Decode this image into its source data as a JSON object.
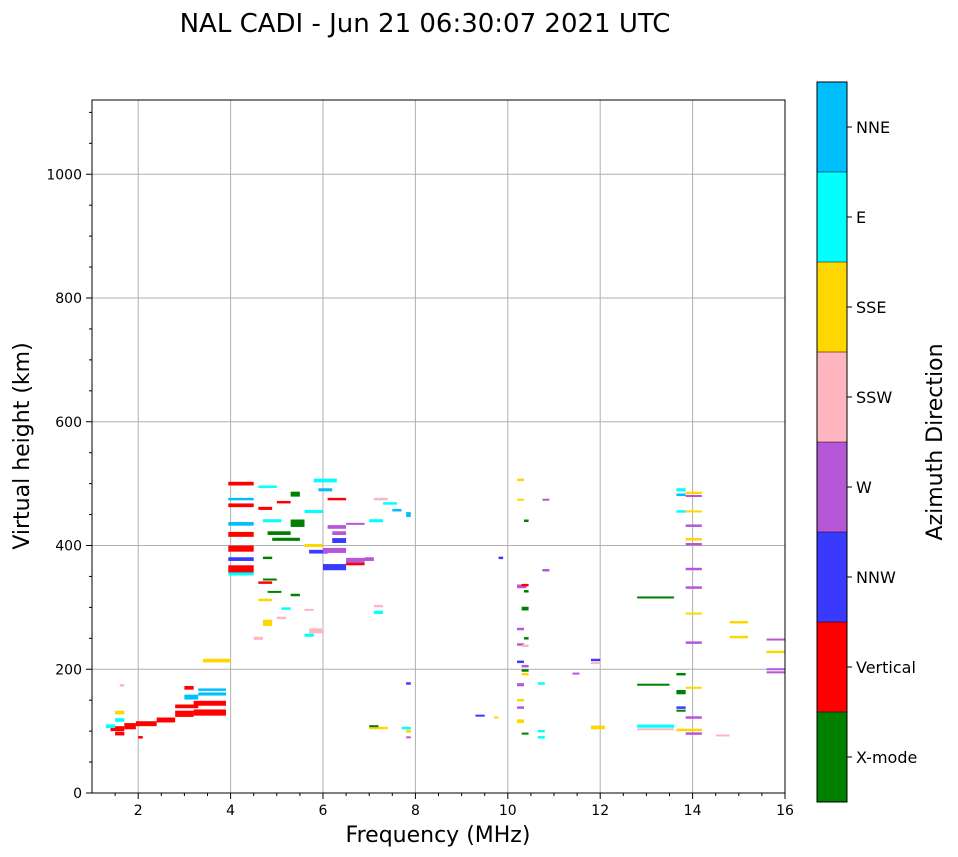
{
  "chart_data": {
    "type": "scatter",
    "title": "NAL CADI - Jun 21 06:30:07 2021 UTC",
    "xlabel": "Frequency (MHz)",
    "ylabel": "Virtual height (km)",
    "xlim": [
      1,
      16
    ],
    "ylim": [
      0,
      1120
    ],
    "xticks": [
      2,
      4,
      6,
      8,
      10,
      12,
      14,
      16
    ],
    "yticks": [
      0,
      200,
      400,
      600,
      800,
      1000
    ],
    "grid": true,
    "colorbar": {
      "label": "Azimuth Direction",
      "categories": [
        {
          "name": "X-mode",
          "color": "#008000"
        },
        {
          "name": "Vertical",
          "color": "#ff0000"
        },
        {
          "name": "NNW",
          "color": "#3a3aff"
        },
        {
          "name": "W",
          "color": "#b557d6"
        },
        {
          "name": "SSW",
          "color": "#ffb6c1"
        },
        {
          "name": "SSE",
          "color": "#ffd700"
        },
        {
          "name": "E",
          "color": "#00ffff"
        },
        {
          "name": "NNE",
          "color": "#00bfff"
        }
      ]
    },
    "segments": [
      {
        "x0": 1.4,
        "x1": 1.7,
        "y": 104,
        "h": 8,
        "c": "Vertical"
      },
      {
        "x0": 1.5,
        "x1": 1.7,
        "y": 96,
        "h": 6,
        "c": "Vertical"
      },
      {
        "x0": 1.3,
        "x1": 1.5,
        "y": 108,
        "h": 6,
        "c": "E"
      },
      {
        "x0": 1.5,
        "x1": 1.7,
        "y": 130,
        "h": 6,
        "c": "SSE"
      },
      {
        "x0": 1.5,
        "x1": 1.7,
        "y": 118,
        "h": 6,
        "c": "E"
      },
      {
        "x0": 1.6,
        "x1": 1.7,
        "y": 174,
        "h": 4,
        "c": "SSW"
      },
      {
        "x0": 1.7,
        "x1": 1.95,
        "y": 108,
        "h": 10,
        "c": "Vertical"
      },
      {
        "x0": 1.95,
        "x1": 2.4,
        "y": 112,
        "h": 8,
        "c": "Vertical"
      },
      {
        "x0": 2.0,
        "x1": 2.1,
        "y": 90,
        "h": 4,
        "c": "Vertical"
      },
      {
        "x0": 2.4,
        "x1": 2.8,
        "y": 118,
        "h": 8,
        "c": "Vertical"
      },
      {
        "x0": 2.8,
        "x1": 3.2,
        "y": 128,
        "h": 10,
        "c": "Vertical"
      },
      {
        "x0": 2.8,
        "x1": 3.3,
        "y": 140,
        "h": 6,
        "c": "Vertical"
      },
      {
        "x0": 3.0,
        "x1": 3.3,
        "y": 155,
        "h": 8,
        "c": "NNE"
      },
      {
        "x0": 3.0,
        "x1": 3.2,
        "y": 170,
        "h": 6,
        "c": "Vertical"
      },
      {
        "x0": 3.2,
        "x1": 3.9,
        "y": 130,
        "h": 10,
        "c": "Vertical"
      },
      {
        "x0": 3.2,
        "x1": 3.9,
        "y": 145,
        "h": 8,
        "c": "Vertical"
      },
      {
        "x0": 3.3,
        "x1": 3.9,
        "y": 160,
        "h": 5,
        "c": "NNE"
      },
      {
        "x0": 3.3,
        "x1": 3.9,
        "y": 167,
        "h": 4,
        "c": "NNE"
      },
      {
        "x0": 3.4,
        "x1": 4.0,
        "y": 214,
        "h": 6,
        "c": "SSE"
      },
      {
        "x0": 3.95,
        "x1": 4.5,
        "y": 500,
        "h": 6,
        "c": "Vertical"
      },
      {
        "x0": 3.95,
        "x1": 4.5,
        "y": 475,
        "h": 4,
        "c": "NNE"
      },
      {
        "x0": 3.95,
        "x1": 4.5,
        "y": 465,
        "h": 6,
        "c": "Vertical"
      },
      {
        "x0": 3.95,
        "x1": 4.5,
        "y": 435,
        "h": 6,
        "c": "NNE"
      },
      {
        "x0": 3.95,
        "x1": 4.5,
        "y": 418,
        "h": 8,
        "c": "Vertical"
      },
      {
        "x0": 3.95,
        "x1": 4.5,
        "y": 395,
        "h": 10,
        "c": "Vertical"
      },
      {
        "x0": 3.95,
        "x1": 4.5,
        "y": 378,
        "h": 6,
        "c": "NNW"
      },
      {
        "x0": 3.95,
        "x1": 4.5,
        "y": 362,
        "h": 12,
        "c": "Vertical"
      },
      {
        "x0": 3.95,
        "x1": 4.5,
        "y": 354,
        "h": 5,
        "c": "E"
      },
      {
        "x0": 4.6,
        "x1": 5.0,
        "y": 495,
        "h": 4,
        "c": "E"
      },
      {
        "x0": 4.6,
        "x1": 4.9,
        "y": 460,
        "h": 5,
        "c": "Vertical"
      },
      {
        "x0": 4.7,
        "x1": 5.1,
        "y": 440,
        "h": 5,
        "c": "E"
      },
      {
        "x0": 4.8,
        "x1": 5.3,
        "y": 420,
        "h": 6,
        "c": "X-mode"
      },
      {
        "x0": 4.9,
        "x1": 5.5,
        "y": 410,
        "h": 5,
        "c": "X-mode"
      },
      {
        "x0": 5.3,
        "x1": 5.6,
        "y": 436,
        "h": 12,
        "c": "X-mode"
      },
      {
        "x0": 5.3,
        "x1": 5.5,
        "y": 483,
        "h": 8,
        "c": "X-mode"
      },
      {
        "x0": 5.0,
        "x1": 5.3,
        "y": 470,
        "h": 4,
        "c": "Vertical"
      },
      {
        "x0": 5.6,
        "x1": 6.0,
        "y": 455,
        "h": 5,
        "c": "E"
      },
      {
        "x0": 5.8,
        "x1": 6.3,
        "y": 505,
        "h": 6,
        "c": "E"
      },
      {
        "x0": 5.9,
        "x1": 6.2,
        "y": 490,
        "h": 5,
        "c": "NNE"
      },
      {
        "x0": 6.1,
        "x1": 6.5,
        "y": 475,
        "h": 4,
        "c": "Vertical"
      },
      {
        "x0": 6.1,
        "x1": 6.5,
        "y": 430,
        "h": 6,
        "c": "W"
      },
      {
        "x0": 6.2,
        "x1": 6.5,
        "y": 420,
        "h": 6,
        "c": "W"
      },
      {
        "x0": 6.2,
        "x1": 6.5,
        "y": 408,
        "h": 8,
        "c": "NNW"
      },
      {
        "x0": 5.6,
        "x1": 6.0,
        "y": 400,
        "h": 5,
        "c": "SSE"
      },
      {
        "x0": 5.7,
        "x1": 6.1,
        "y": 390,
        "h": 6,
        "c": "NNW"
      },
      {
        "x0": 6.0,
        "x1": 6.5,
        "y": 392,
        "h": 8,
        "c": "W"
      },
      {
        "x0": 6.0,
        "x1": 6.5,
        "y": 365,
        "h": 10,
        "c": "NNW"
      },
      {
        "x0": 6.5,
        "x1": 6.9,
        "y": 375,
        "h": 10,
        "c": "W"
      },
      {
        "x0": 6.5,
        "x1": 6.9,
        "y": 370,
        "h": 4,
        "c": "Vertical"
      },
      {
        "x0": 6.9,
        "x1": 7.1,
        "y": 378,
        "h": 6,
        "c": "W"
      },
      {
        "x0": 6.5,
        "x1": 6.9,
        "y": 435,
        "h": 3,
        "c": "W"
      },
      {
        "x0": 7.0,
        "x1": 7.3,
        "y": 440,
        "h": 5,
        "c": "E"
      },
      {
        "x0": 7.1,
        "x1": 7.4,
        "y": 475,
        "h": 4,
        "c": "SSW"
      },
      {
        "x0": 7.3,
        "x1": 7.6,
        "y": 468,
        "h": 4,
        "c": "E"
      },
      {
        "x0": 7.5,
        "x1": 7.7,
        "y": 457,
        "h": 4,
        "c": "NNE"
      },
      {
        "x0": 7.8,
        "x1": 7.9,
        "y": 450,
        "h": 8,
        "c": "NNE"
      },
      {
        "x0": 7.1,
        "x1": 7.3,
        "y": 302,
        "h": 4,
        "c": "SSW"
      },
      {
        "x0": 7.1,
        "x1": 7.3,
        "y": 292,
        "h": 5,
        "c": "E"
      },
      {
        "x0": 4.6,
        "x1": 4.9,
        "y": 340,
        "h": 4,
        "c": "Vertical"
      },
      {
        "x0": 4.7,
        "x1": 5.0,
        "y": 345,
        "h": 3,
        "c": "X-mode"
      },
      {
        "x0": 4.8,
        "x1": 5.1,
        "y": 325,
        "h": 3,
        "c": "X-mode"
      },
      {
        "x0": 4.6,
        "x1": 4.9,
        "y": 312,
        "h": 4,
        "c": "SSE"
      },
      {
        "x0": 5.3,
        "x1": 5.5,
        "y": 320,
        "h": 4,
        "c": "X-mode"
      },
      {
        "x0": 4.7,
        "x1": 4.9,
        "y": 275,
        "h": 10,
        "c": "SSE"
      },
      {
        "x0": 5.0,
        "x1": 5.2,
        "y": 283,
        "h": 4,
        "c": "SSW"
      },
      {
        "x0": 5.1,
        "x1": 5.3,
        "y": 298,
        "h": 4,
        "c": "E"
      },
      {
        "x0": 5.6,
        "x1": 5.8,
        "y": 296,
        "h": 3,
        "c": "SSW"
      },
      {
        "x0": 5.7,
        "x1": 6.0,
        "y": 262,
        "h": 8,
        "c": "SSW"
      },
      {
        "x0": 5.6,
        "x1": 5.8,
        "y": 255,
        "h": 5,
        "c": "E"
      },
      {
        "x0": 4.5,
        "x1": 4.7,
        "y": 250,
        "h": 5,
        "c": "SSW"
      },
      {
        "x0": 4.7,
        "x1": 4.9,
        "y": 380,
        "h": 4,
        "c": "X-mode"
      },
      {
        "x0": 7.0,
        "x1": 7.4,
        "y": 105,
        "h": 4,
        "c": "SSE"
      },
      {
        "x0": 7.0,
        "x1": 7.2,
        "y": 108,
        "h": 3,
        "c": "X-mode"
      },
      {
        "x0": 7.7,
        "x1": 7.9,
        "y": 105,
        "h": 4,
        "c": "E"
      },
      {
        "x0": 7.8,
        "x1": 7.9,
        "y": 100,
        "h": 5,
        "c": "SSE"
      },
      {
        "x0": 7.8,
        "x1": 7.9,
        "y": 90,
        "h": 3,
        "c": "W"
      },
      {
        "x0": 7.8,
        "x1": 7.9,
        "y": 177,
        "h": 4,
        "c": "NNW"
      },
      {
        "x0": 9.3,
        "x1": 9.5,
        "y": 125,
        "h": 3,
        "c": "NNW"
      },
      {
        "x0": 9.7,
        "x1": 9.8,
        "y": 122,
        "h": 3,
        "c": "SSE"
      },
      {
        "x0": 9.8,
        "x1": 9.9,
        "y": 380,
        "h": 4,
        "c": "NNW"
      },
      {
        "x0": 10.2,
        "x1": 10.35,
        "y": 506,
        "h": 4,
        "c": "SSE"
      },
      {
        "x0": 10.2,
        "x1": 10.35,
        "y": 474,
        "h": 3,
        "c": "SSE"
      },
      {
        "x0": 10.35,
        "x1": 10.45,
        "y": 440,
        "h": 4,
        "c": "X-mode"
      },
      {
        "x0": 10.2,
        "x1": 10.4,
        "y": 334,
        "h": 6,
        "c": "W"
      },
      {
        "x0": 10.3,
        "x1": 10.45,
        "y": 336,
        "h": 4,
        "c": "Vertical"
      },
      {
        "x0": 10.35,
        "x1": 10.45,
        "y": 326,
        "h": 4,
        "c": "X-mode"
      },
      {
        "x0": 10.3,
        "x1": 10.45,
        "y": 298,
        "h": 6,
        "c": "X-mode"
      },
      {
        "x0": 10.2,
        "x1": 10.35,
        "y": 265,
        "h": 4,
        "c": "W"
      },
      {
        "x0": 10.35,
        "x1": 10.45,
        "y": 250,
        "h": 4,
        "c": "X-mode"
      },
      {
        "x0": 10.2,
        "x1": 10.35,
        "y": 240,
        "h": 4,
        "c": "W"
      },
      {
        "x0": 10.3,
        "x1": 10.45,
        "y": 238,
        "h": 4,
        "c": "SSW"
      },
      {
        "x0": 10.2,
        "x1": 10.35,
        "y": 212,
        "h": 4,
        "c": "NNW"
      },
      {
        "x0": 10.3,
        "x1": 10.45,
        "y": 205,
        "h": 4,
        "c": "W"
      },
      {
        "x0": 10.3,
        "x1": 10.45,
        "y": 198,
        "h": 4,
        "c": "X-mode"
      },
      {
        "x0": 10.3,
        "x1": 10.45,
        "y": 192,
        "h": 4,
        "c": "SSE"
      },
      {
        "x0": 10.2,
        "x1": 10.35,
        "y": 175,
        "h": 5,
        "c": "W"
      },
      {
        "x0": 10.2,
        "x1": 10.35,
        "y": 150,
        "h": 4,
        "c": "SSE"
      },
      {
        "x0": 10.2,
        "x1": 10.35,
        "y": 138,
        "h": 4,
        "c": "W"
      },
      {
        "x0": 10.2,
        "x1": 10.35,
        "y": 116,
        "h": 6,
        "c": "SSE"
      },
      {
        "x0": 10.3,
        "x1": 10.45,
        "y": 96,
        "h": 3,
        "c": "X-mode"
      },
      {
        "x0": 10.65,
        "x1": 10.8,
        "y": 177,
        "h": 4,
        "c": "E"
      },
      {
        "x0": 10.65,
        "x1": 10.8,
        "y": 100,
        "h": 4,
        "c": "E"
      },
      {
        "x0": 10.65,
        "x1": 10.8,
        "y": 90,
        "h": 4,
        "c": "E"
      },
      {
        "x0": 10.75,
        "x1": 10.9,
        "y": 360,
        "h": 4,
        "c": "W"
      },
      {
        "x0": 10.75,
        "x1": 10.9,
        "y": 474,
        "h": 3,
        "c": "W"
      },
      {
        "x0": 11.4,
        "x1": 11.55,
        "y": 193,
        "h": 3,
        "c": "W"
      },
      {
        "x0": 11.8,
        "x1": 12.0,
        "y": 215,
        "h": 4,
        "c": "NNW"
      },
      {
        "x0": 11.8,
        "x1": 12.0,
        "y": 210,
        "h": 3,
        "c": "SSW"
      },
      {
        "x0": 11.8,
        "x1": 12.1,
        "y": 106,
        "h": 6,
        "c": "SSE"
      },
      {
        "x0": 12.8,
        "x1": 13.6,
        "y": 316,
        "h": 3,
        "c": "X-mode"
      },
      {
        "x0": 12.8,
        "x1": 13.5,
        "y": 175,
        "h": 3,
        "c": "X-mode"
      },
      {
        "x0": 12.8,
        "x1": 13.6,
        "y": 108,
        "h": 5,
        "c": "E"
      },
      {
        "x0": 12.8,
        "x1": 13.6,
        "y": 103,
        "h": 3,
        "c": "SSW"
      },
      {
        "x0": 13.65,
        "x1": 13.85,
        "y": 490,
        "h": 5,
        "c": "E"
      },
      {
        "x0": 13.65,
        "x1": 13.85,
        "y": 482,
        "h": 4,
        "c": "NNE"
      },
      {
        "x0": 13.65,
        "x1": 13.85,
        "y": 455,
        "h": 4,
        "c": "E"
      },
      {
        "x0": 13.85,
        "x1": 14.2,
        "y": 485,
        "h": 4,
        "c": "SSE"
      },
      {
        "x0": 13.85,
        "x1": 14.2,
        "y": 480,
        "h": 3,
        "c": "W"
      },
      {
        "x0": 13.85,
        "x1": 14.2,
        "y": 455,
        "h": 3,
        "c": "SSE"
      },
      {
        "x0": 13.85,
        "x1": 14.2,
        "y": 432,
        "h": 4,
        "c": "W"
      },
      {
        "x0": 13.85,
        "x1": 14.2,
        "y": 410,
        "h": 4,
        "c": "SSE"
      },
      {
        "x0": 13.85,
        "x1": 14.2,
        "y": 402,
        "h": 4,
        "c": "W"
      },
      {
        "x0": 13.85,
        "x1": 14.2,
        "y": 362,
        "h": 4,
        "c": "W"
      },
      {
        "x0": 13.85,
        "x1": 14.2,
        "y": 332,
        "h": 4,
        "c": "W"
      },
      {
        "x0": 13.85,
        "x1": 14.2,
        "y": 290,
        "h": 3,
        "c": "SSE"
      },
      {
        "x0": 13.85,
        "x1": 14.2,
        "y": 243,
        "h": 4,
        "c": "W"
      },
      {
        "x0": 13.65,
        "x1": 13.85,
        "y": 192,
        "h": 4,
        "c": "X-mode"
      },
      {
        "x0": 13.85,
        "x1": 14.2,
        "y": 170,
        "h": 3,
        "c": "SSE"
      },
      {
        "x0": 13.65,
        "x1": 13.85,
        "y": 163,
        "h": 7,
        "c": "X-mode"
      },
      {
        "x0": 13.65,
        "x1": 13.85,
        "y": 138,
        "h": 4,
        "c": "NNW"
      },
      {
        "x0": 13.65,
        "x1": 13.85,
        "y": 133,
        "h": 3,
        "c": "X-mode"
      },
      {
        "x0": 13.85,
        "x1": 14.2,
        "y": 122,
        "h": 4,
        "c": "W"
      },
      {
        "x0": 13.65,
        "x1": 14.2,
        "y": 102,
        "h": 4,
        "c": "SSE"
      },
      {
        "x0": 13.85,
        "x1": 14.2,
        "y": 96,
        "h": 4,
        "c": "W"
      },
      {
        "x0": 14.5,
        "x1": 14.8,
        "y": 93,
        "h": 3,
        "c": "SSW"
      },
      {
        "x0": 14.8,
        "x1": 15.2,
        "y": 276,
        "h": 4,
        "c": "SSE"
      },
      {
        "x0": 14.8,
        "x1": 15.2,
        "y": 252,
        "h": 4,
        "c": "SSE"
      },
      {
        "x0": 15.6,
        "x1": 16.0,
        "y": 248,
        "h": 3,
        "c": "W"
      },
      {
        "x0": 15.6,
        "x1": 16.0,
        "y": 228,
        "h": 4,
        "c": "SSE"
      },
      {
        "x0": 15.6,
        "x1": 16.0,
        "y": 200,
        "h": 3,
        "c": "W"
      },
      {
        "x0": 15.6,
        "x1": 16.0,
        "y": 195,
        "h": 3,
        "c": "W"
      }
    ]
  }
}
